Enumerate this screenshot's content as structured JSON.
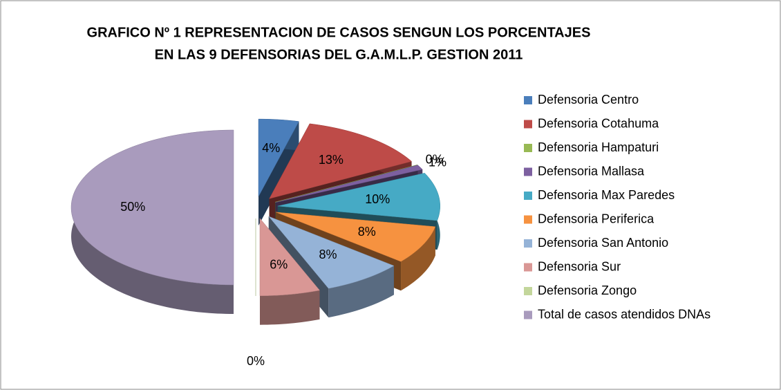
{
  "chart_data": {
    "type": "pie",
    "title": [
      "GRAFICO Nº 1 REPRESENTACION  DE CASOS SENGUN  LOS PORCENTAJES",
      "EN LAS 9 DEFENSORIAS  DEL G.A.M.L.P. GESTION  2011"
    ],
    "categories": [
      "Defensoria Centro",
      "Defensoria Cotahuma",
      "Defensoria Hampaturi",
      "Defensoria Mallasa",
      "Defensoria Max Paredes",
      "Defensoria Periferica",
      "Defensoria San Antonio",
      "Defensoria  Sur",
      "Defensoria Zongo",
      "Total de casos atendidos  DNAs"
    ],
    "values": [
      4,
      13,
      0,
      1,
      10,
      8,
      8,
      6,
      0,
      50
    ],
    "value_labels": [
      "4%",
      "13%",
      "0%",
      "1%",
      "10%",
      "8%",
      "8%",
      "6%",
      "0%",
      "50%"
    ],
    "colors": [
      "#4a7ebb",
      "#be4b48",
      "#98b954",
      "#7d60a0",
      "#46aac5",
      "#f69240",
      "#95b3d7",
      "#d99795",
      "#c3d69b",
      "#a99bbd"
    ],
    "legend": "right"
  }
}
